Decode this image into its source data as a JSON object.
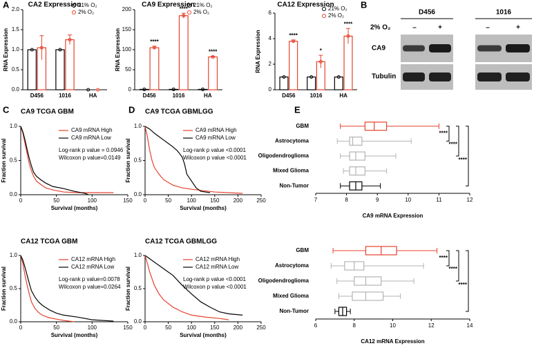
{
  "panel_labels": [
    "A",
    "B",
    "C",
    "D",
    "E"
  ],
  "blot": {
    "cell_lines": [
      "D456",
      "1016"
    ],
    "condition": "2% O₂",
    "signs": [
      "–",
      "+",
      "–",
      "+"
    ],
    "proteins": [
      "CA9",
      "Tubulin"
    ]
  },
  "chart_data": [
    {
      "type": "bar",
      "title": "CA2 Expression",
      "y_label": "RNA Expression",
      "categories": [
        "D456",
        "1016",
        "HA"
      ],
      "series": [
        {
          "name": "21% O₂",
          "color": "#000000",
          "values": [
            1,
            1,
            0
          ]
        },
        {
          "name": "2% O₂",
          "color": "#e5412d",
          "values": [
            1.05,
            1.25,
            0
          ],
          "errors": [
            0.3,
            0.12,
            0
          ]
        }
      ],
      "ylim": [
        0,
        2
      ],
      "yticks": [
        {
          "value": 0,
          "label": "0.0"
        },
        {
          "value": 0.5,
          "label": "0.5"
        },
        {
          "value": 1,
          "label": "1.0"
        },
        {
          "value": 1.5,
          "label": "1.5"
        },
        {
          "value": 2,
          "label": "2.0"
        }
      ],
      "legend": "upper right"
    },
    {
      "type": "bar",
      "title": "CA9 Expression",
      "y_label": "RNA Expression",
      "categories": [
        "D456",
        "1016",
        "HA"
      ],
      "series": [
        {
          "name": "21% O₂",
          "color": "#000000",
          "values": [
            1,
            1,
            1
          ]
        },
        {
          "name": "2% O₂",
          "color": "#e5412d",
          "values": [
            105,
            185,
            82
          ],
          "errors": [
            4,
            6,
            2
          ]
        }
      ],
      "ylim": [
        0,
        200
      ],
      "yticks": [
        0,
        50,
        100,
        150,
        200
      ],
      "legend": "upper right",
      "significance": [
        "****",
        "****",
        "****"
      ]
    },
    {
      "type": "bar",
      "title": "CA12 Expression",
      "y_label": "RNA Expression",
      "categories": [
        "D456",
        "1016",
        "HA"
      ],
      "series": [
        {
          "name": "21% O₂",
          "color": "#000000",
          "values": [
            1,
            1,
            1
          ]
        },
        {
          "name": "2% O₂",
          "color": "#e5412d",
          "values": [
            3.8,
            2.2,
            4.2
          ],
          "errors": [
            0.1,
            0.5,
            0.6
          ]
        }
      ],
      "ylim": [
        0,
        6
      ],
      "yticks": [
        0,
        2,
        4,
        6
      ],
      "legend": "upper right",
      "significance": [
        "****",
        "*",
        "****"
      ]
    },
    {
      "type": "line",
      "title": "CA9 TCGA GBM",
      "x_label": "Survival (months)",
      "y_label": "Fraction survival",
      "series": [
        {
          "name": "CA9 mRNA High",
          "color": "#e5412d",
          "x": [
            0,
            3,
            6,
            9,
            12,
            15,
            18,
            22,
            28,
            35,
            45,
            60,
            80,
            130
          ],
          "values": [
            1,
            0.9,
            0.75,
            0.6,
            0.45,
            0.35,
            0.27,
            0.2,
            0.15,
            0.1,
            0.07,
            0.04,
            0.03,
            0.03
          ]
        },
        {
          "name": "CA9 mRNA Low",
          "color": "#000000",
          "x": [
            0,
            3,
            6,
            9,
            12,
            15,
            18,
            22,
            28,
            35,
            45,
            60,
            75,
            90,
            95
          ],
          "values": [
            1,
            0.92,
            0.8,
            0.66,
            0.53,
            0.42,
            0.33,
            0.27,
            0.22,
            0.17,
            0.12,
            0.09,
            0.05,
            0.02,
            0
          ]
        }
      ],
      "xlim": [
        0,
        150
      ],
      "xticks": [
        0,
        50,
        100,
        150
      ],
      "ylim": [
        0,
        1
      ],
      "yticks": [
        {
          "value": 0,
          "label": "0.0"
        },
        {
          "value": 0.5,
          "label": "0.5"
        },
        {
          "value": 1,
          "label": "1.0"
        }
      ],
      "annotations": [
        "Log-rank p value = 0.0946",
        "Wilcoxon p value=0.0149"
      ],
      "legend": "upper right"
    },
    {
      "type": "line",
      "title": "CA9 TCGA GBMLGG",
      "x_label": "Survival (months)",
      "y_label": "Fraction survival",
      "series": [
        {
          "name": "CA9 mRNA High",
          "color": "#e5412d",
          "x": [
            0,
            5,
            10,
            15,
            20,
            30,
            40,
            60,
            80,
            100,
            150,
            210
          ],
          "values": [
            1,
            0.85,
            0.65,
            0.5,
            0.4,
            0.3,
            0.22,
            0.14,
            0.1,
            0.08,
            0.04,
            0.02
          ]
        },
        {
          "name": "CA9 mRNA Low",
          "color": "#000000",
          "x": [
            0,
            10,
            20,
            30,
            40,
            50,
            60,
            70,
            80,
            85,
            90,
            100,
            110,
            120,
            140
          ],
          "values": [
            1,
            0.96,
            0.9,
            0.85,
            0.8,
            0.75,
            0.7,
            0.64,
            0.55,
            0.45,
            0.3,
            0.2,
            0.1,
            0.05,
            0.03
          ]
        }
      ],
      "xlim": [
        0,
        250
      ],
      "xticks": [
        0,
        50,
        100,
        150,
        200,
        250
      ],
      "ylim": [
        0,
        1
      ],
      "yticks": [
        {
          "value": 0,
          "label": "0.0"
        },
        {
          "value": 0.5,
          "label": "0.5"
        },
        {
          "value": 1,
          "label": "1.0"
        }
      ],
      "annotations": [
        "Log-rank p value  <0.0001",
        "Wilcoxon p value  <0.0001"
      ],
      "legend": "upper right"
    },
    {
      "type": "line",
      "title": "CA12 TCGA GBM",
      "x_label": "Survival (months)",
      "y_label": "Fraction survival",
      "series": [
        {
          "name": "CA12 mRNA High",
          "color": "#e5412d",
          "x": [
            0,
            3,
            6,
            9,
            12,
            15,
            20,
            25,
            30,
            40,
            50,
            60,
            75
          ],
          "values": [
            1,
            0.88,
            0.7,
            0.55,
            0.42,
            0.3,
            0.2,
            0.14,
            0.1,
            0.06,
            0.04,
            0.02,
            0
          ]
        },
        {
          "name": "CA12 mRNA Low",
          "color": "#000000",
          "x": [
            0,
            3,
            6,
            9,
            12,
            15,
            20,
            25,
            30,
            40,
            50,
            60,
            80,
            100,
            130
          ],
          "values": [
            1,
            0.93,
            0.82,
            0.7,
            0.58,
            0.47,
            0.37,
            0.3,
            0.25,
            0.18,
            0.13,
            0.1,
            0.07,
            0.03,
            0.01
          ]
        }
      ],
      "xlim": [
        0,
        150
      ],
      "xticks": [
        0,
        50,
        100,
        150
      ],
      "ylim": [
        0,
        1
      ],
      "yticks": [
        {
          "value": 0,
          "label": "0.0"
        },
        {
          "value": 0.5,
          "label": "0.5"
        },
        {
          "value": 1,
          "label": "1.0"
        }
      ],
      "annotations": [
        "Log-rank p value=0.0078",
        "Wilcoxon p value=0.0264"
      ],
      "legend": "upper right"
    },
    {
      "type": "line",
      "title": "CA12 TCGA GBMLGG",
      "x_label": "Survival (months)",
      "y_label": "Fraction survival",
      "series": [
        {
          "name": "CA12 mRNA High",
          "color": "#e5412d",
          "x": [
            0,
            5,
            10,
            20,
            30,
            40,
            60,
            80,
            100,
            130,
            160,
            180
          ],
          "values": [
            1,
            0.88,
            0.75,
            0.55,
            0.42,
            0.33,
            0.22,
            0.15,
            0.1,
            0.07,
            0.05,
            0.03
          ]
        },
        {
          "name": "CA12 mRNA Low",
          "color": "#000000",
          "x": [
            0,
            10,
            20,
            30,
            40,
            60,
            80,
            100,
            120,
            140,
            160,
            180,
            210
          ],
          "values": [
            1,
            0.95,
            0.9,
            0.85,
            0.8,
            0.7,
            0.55,
            0.42,
            0.3,
            0.22,
            0.15,
            0.12,
            0.1
          ]
        }
      ],
      "xlim": [
        0,
        250
      ],
      "xticks": [
        0,
        50,
        100,
        150,
        200,
        250
      ],
      "ylim": [
        0,
        1
      ],
      "yticks": [
        {
          "value": 0,
          "label": "0.0"
        },
        {
          "value": 0.5,
          "label": "0.5"
        },
        {
          "value": 1,
          "label": "1.0"
        }
      ],
      "annotations": [
        "Log-rank p value  <0.0001",
        "Wilcoxon p value  <0.0001"
      ],
      "legend": "upper right"
    },
    {
      "type": "box",
      "orientation": "horizontal",
      "x_label": "CA9 mRNA Expression",
      "categories": [
        "GBM",
        "Astrocytoma",
        "Oligodendroglioma",
        "Mixed Glioma",
        "Non-Tumor"
      ],
      "colors": [
        "#e5412d",
        "#b3b3b3",
        "#b3b3b3",
        "#b3b3b3",
        "#000000"
      ],
      "boxes": [
        {
          "min": 7.8,
          "q1": 8.6,
          "median": 8.9,
          "q3": 9.3,
          "max": 11.0
        },
        {
          "min": 7.7,
          "q1": 8.1,
          "median": 8.2,
          "q3": 8.5,
          "max": 10.1
        },
        {
          "min": 7.8,
          "q1": 8.1,
          "median": 8.3,
          "q3": 8.6,
          "max": 9.6
        },
        {
          "min": 7.9,
          "q1": 8.1,
          "median": 8.3,
          "q3": 8.6,
          "max": 9.3
        },
        {
          "min": 7.8,
          "q1": 8.1,
          "median": 8.3,
          "q3": 8.5,
          "max": 9.1
        }
      ],
      "xlim": [
        7,
        12
      ],
      "xticks": [
        7,
        8,
        9,
        10,
        11,
        12
      ],
      "significance": [
        "****",
        "****",
        "****"
      ]
    },
    {
      "type": "box",
      "orientation": "horizontal",
      "x_label": "CA12 mRNA Expression",
      "categories": [
        "GBM",
        "Astrocytoma",
        "Oligodendroglioma",
        "Mixed Glioma",
        "Non-Tumor"
      ],
      "colors": [
        "#e5412d",
        "#b3b3b3",
        "#b3b3b3",
        "#b3b3b3",
        "#000000"
      ],
      "boxes": [
        {
          "min": 6.9,
          "q1": 8.6,
          "median": 9.4,
          "q3": 10.2,
          "max": 12.3
        },
        {
          "min": 6.8,
          "q1": 7.5,
          "median": 8.0,
          "q3": 8.5,
          "max": 11.6
        },
        {
          "min": 7.1,
          "q1": 8.0,
          "median": 8.6,
          "q3": 9.4,
          "max": 11.1
        },
        {
          "min": 7.2,
          "q1": 7.9,
          "median": 8.6,
          "q3": 9.5,
          "max": 10.4
        },
        {
          "min": 7.0,
          "q1": 7.2,
          "median": 7.4,
          "q3": 7.6,
          "max": 7.8
        }
      ],
      "xlim": [
        6,
        14
      ],
      "xticks": [
        6,
        8,
        10,
        12,
        14
      ],
      "significance": [
        "****",
        "****",
        "****"
      ]
    }
  ]
}
